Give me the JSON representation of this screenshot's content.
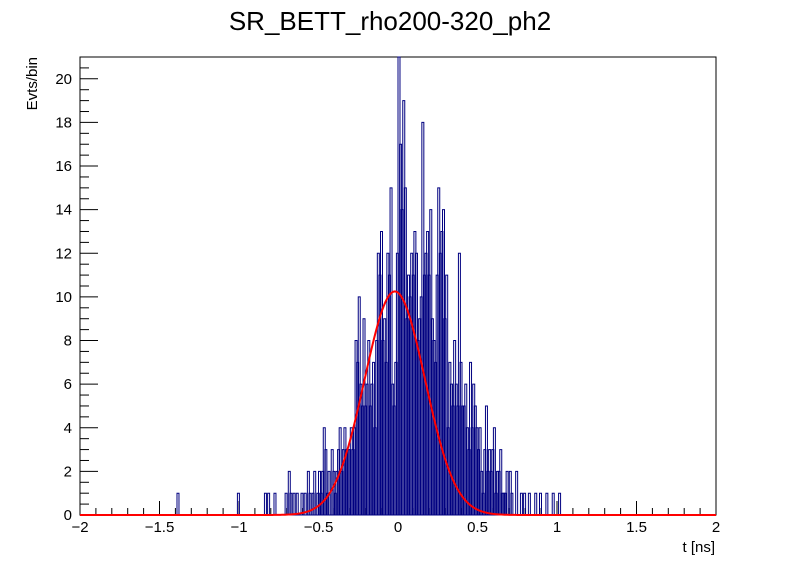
{
  "chart_data": {
    "type": "histogram",
    "title": "SR_BETT_rho200-320_ph2",
    "xlabel": "t [ns]",
    "ylabel": "Evts/bin",
    "xlim": [
      -2,
      2
    ],
    "ylim": [
      0,
      21
    ],
    "x_ticks": [
      -2,
      -1.5,
      -1,
      -0.5,
      0,
      0.5,
      1,
      1.5,
      2
    ],
    "x_tick_labels": [
      "−2",
      "−1.5",
      "−1",
      "−0.5",
      "0",
      "0.5",
      "1",
      "1.5",
      "2"
    ],
    "y_ticks": [
      0,
      2,
      4,
      6,
      8,
      10,
      12,
      14,
      16,
      18,
      20
    ],
    "y_tick_labels": [
      "0",
      "2",
      "4",
      "6",
      "8",
      "10",
      "12",
      "14",
      "16",
      "18",
      "20"
    ],
    "grid": false,
    "bin_width": 0.0125,
    "histogram_color": "#000080",
    "histogram_bins": [
      [
        -1.39,
        1
      ],
      [
        -1.01,
        1
      ],
      [
        -0.84,
        1
      ],
      [
        -0.82,
        1
      ],
      [
        -0.78,
        1
      ],
      [
        -0.71,
        1
      ],
      [
        -0.69,
        2
      ],
      [
        -0.68,
        1
      ],
      [
        -0.66,
        1
      ],
      [
        -0.64,
        1
      ],
      [
        -0.61,
        1
      ],
      [
        -0.59,
        1
      ],
      [
        -0.57,
        2
      ],
      [
        -0.56,
        1
      ],
      [
        -0.54,
        1
      ],
      [
        -0.53,
        2
      ],
      [
        -0.51,
        1
      ],
      [
        -0.5,
        2
      ],
      [
        -0.49,
        1
      ],
      [
        -0.48,
        2
      ],
      [
        -0.47,
        4
      ],
      [
        -0.46,
        3
      ],
      [
        -0.45,
        1
      ],
      [
        -0.44,
        2
      ],
      [
        -0.42,
        3
      ],
      [
        -0.41,
        2
      ],
      [
        -0.4,
        1
      ],
      [
        -0.39,
        2
      ],
      [
        -0.38,
        3
      ],
      [
        -0.37,
        4
      ],
      [
        -0.36,
        2
      ],
      [
        -0.35,
        3
      ],
      [
        -0.34,
        4
      ],
      [
        -0.33,
        3
      ],
      [
        -0.32,
        3
      ],
      [
        -0.31,
        3
      ],
      [
        -0.3,
        4
      ],
      [
        -0.29,
        3
      ],
      [
        -0.28,
        4
      ],
      [
        -0.27,
        8
      ],
      [
        -0.26,
        7
      ],
      [
        -0.25,
        10
      ],
      [
        -0.24,
        6
      ],
      [
        -0.23,
        5
      ],
      [
        -0.22,
        9
      ],
      [
        -0.21,
        5
      ],
      [
        -0.2,
        6
      ],
      [
        -0.19,
        8
      ],
      [
        -0.18,
        5
      ],
      [
        -0.17,
        6
      ],
      [
        -0.16,
        7
      ],
      [
        -0.15,
        4
      ],
      [
        -0.14,
        8
      ],
      [
        -0.13,
        12
      ],
      [
        -0.12,
        11
      ],
      [
        -0.11,
        13
      ],
      [
        -0.1,
        8
      ],
      [
        -0.09,
        9
      ],
      [
        -0.08,
        7
      ],
      [
        -0.07,
        12
      ],
      [
        -0.06,
        11
      ],
      [
        -0.05,
        15
      ],
      [
        -0.04,
        6
      ],
      [
        -0.03,
        5
      ],
      [
        -0.02,
        7
      ],
      [
        -0.01,
        12
      ],
      [
        0.0,
        21
      ],
      [
        0.01,
        17
      ],
      [
        0.02,
        14
      ],
      [
        0.03,
        19
      ],
      [
        0.04,
        15
      ],
      [
        0.05,
        9
      ],
      [
        0.06,
        11
      ],
      [
        0.07,
        10
      ],
      [
        0.08,
        12
      ],
      [
        0.09,
        11
      ],
      [
        0.1,
        13
      ],
      [
        0.11,
        12
      ],
      [
        0.12,
        8
      ],
      [
        0.13,
        9
      ],
      [
        0.14,
        10
      ],
      [
        0.15,
        18
      ],
      [
        0.16,
        11
      ],
      [
        0.17,
        12
      ],
      [
        0.18,
        13
      ],
      [
        0.19,
        11
      ],
      [
        0.2,
        14
      ],
      [
        0.21,
        9
      ],
      [
        0.22,
        8
      ],
      [
        0.23,
        7
      ],
      [
        0.24,
        11
      ],
      [
        0.25,
        15
      ],
      [
        0.26,
        12
      ],
      [
        0.27,
        13
      ],
      [
        0.28,
        14
      ],
      [
        0.29,
        9
      ],
      [
        0.3,
        11
      ],
      [
        0.31,
        4
      ],
      [
        0.32,
        7
      ],
      [
        0.33,
        6
      ],
      [
        0.34,
        5
      ],
      [
        0.35,
        8
      ],
      [
        0.36,
        6
      ],
      [
        0.37,
        5
      ],
      [
        0.38,
        12
      ],
      [
        0.39,
        7
      ],
      [
        0.4,
        5
      ],
      [
        0.41,
        5
      ],
      [
        0.42,
        6
      ],
      [
        0.43,
        4
      ],
      [
        0.44,
        3
      ],
      [
        0.45,
        7
      ],
      [
        0.46,
        4
      ],
      [
        0.47,
        6
      ],
      [
        0.48,
        5
      ],
      [
        0.49,
        4
      ],
      [
        0.5,
        3
      ],
      [
        0.51,
        4
      ],
      [
        0.52,
        2
      ],
      [
        0.53,
        1
      ],
      [
        0.54,
        3
      ],
      [
        0.55,
        5
      ],
      [
        0.56,
        2
      ],
      [
        0.57,
        3
      ],
      [
        0.58,
        2
      ],
      [
        0.59,
        3
      ],
      [
        0.6,
        4
      ],
      [
        0.61,
        1
      ],
      [
        0.62,
        2
      ],
      [
        0.63,
        2
      ],
      [
        0.64,
        3
      ],
      [
        0.65,
        1
      ],
      [
        0.66,
        1
      ],
      [
        0.67,
        1
      ],
      [
        0.68,
        2
      ],
      [
        0.7,
        2
      ],
      [
        0.71,
        1
      ],
      [
        0.74,
        2
      ],
      [
        0.77,
        1
      ],
      [
        0.79,
        1
      ],
      [
        0.82,
        1
      ],
      [
        0.86,
        1
      ],
      [
        0.89,
        1
      ],
      [
        0.93,
        1
      ],
      [
        0.97,
        1
      ],
      [
        1.01,
        1
      ]
    ],
    "fit": {
      "function": "gaussian",
      "color": "#ff0000",
      "amplitude": 10.25,
      "mean": -0.02,
      "sigma": 0.19
    }
  }
}
